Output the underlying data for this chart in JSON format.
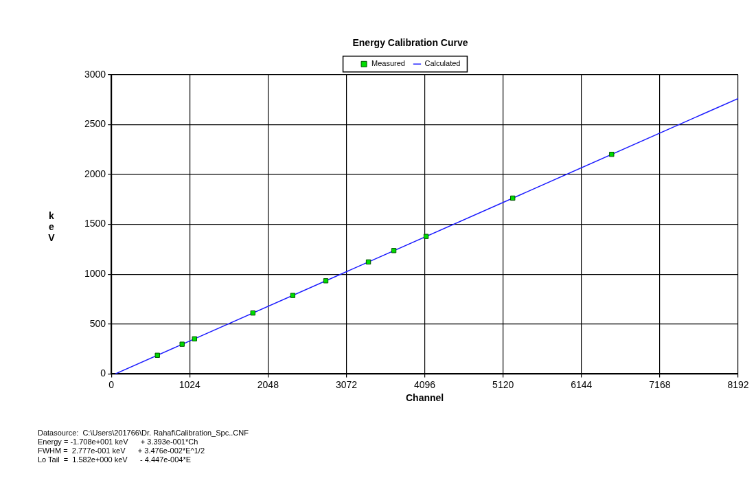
{
  "chart_data": {
    "type": "scatter",
    "title": "Energy Calibration Curve",
    "xlabel": "Channel",
    "ylabel": "keV",
    "xlim": [
      0,
      8192
    ],
    "xticks": [
      0,
      1024,
      2048,
      3072,
      4096,
      5120,
      6144,
      7168,
      8192
    ],
    "ylim": [
      0,
      3000
    ],
    "yticks": [
      0,
      500,
      1000,
      1500,
      2000,
      2500,
      3000
    ],
    "grid": true,
    "legend": "top",
    "series": [
      {
        "name": "Measured",
        "marker": "square",
        "color": "#00dd00",
        "x": [
          602,
          925,
          1087,
          1850,
          2371,
          2803,
          3360,
          3692,
          4114,
          5246,
          6539
        ],
        "values": [
          187,
          298,
          352,
          611,
          787,
          934,
          1123,
          1237,
          1379,
          1763,
          2202
        ]
      },
      {
        "name": "Calculated",
        "type": "line",
        "marker": "none",
        "color": "#1a1aff",
        "x": [
          50,
          8192
        ],
        "values": [
          0,
          2762
        ]
      }
    ],
    "annotations": [
      "Datasource:  C:\\Users\\201766\\Dr. Rahaf\\Calibration_Spc..CNF",
      "Energy = -1.708e+001 keV      + 3.393e-001*Ch",
      "FWHM =  2.777e-001 keV      + 3.476e-002*E^1/2",
      "Lo Tail  =  1.582e+000 keV      - 4.447e-004*E"
    ]
  }
}
